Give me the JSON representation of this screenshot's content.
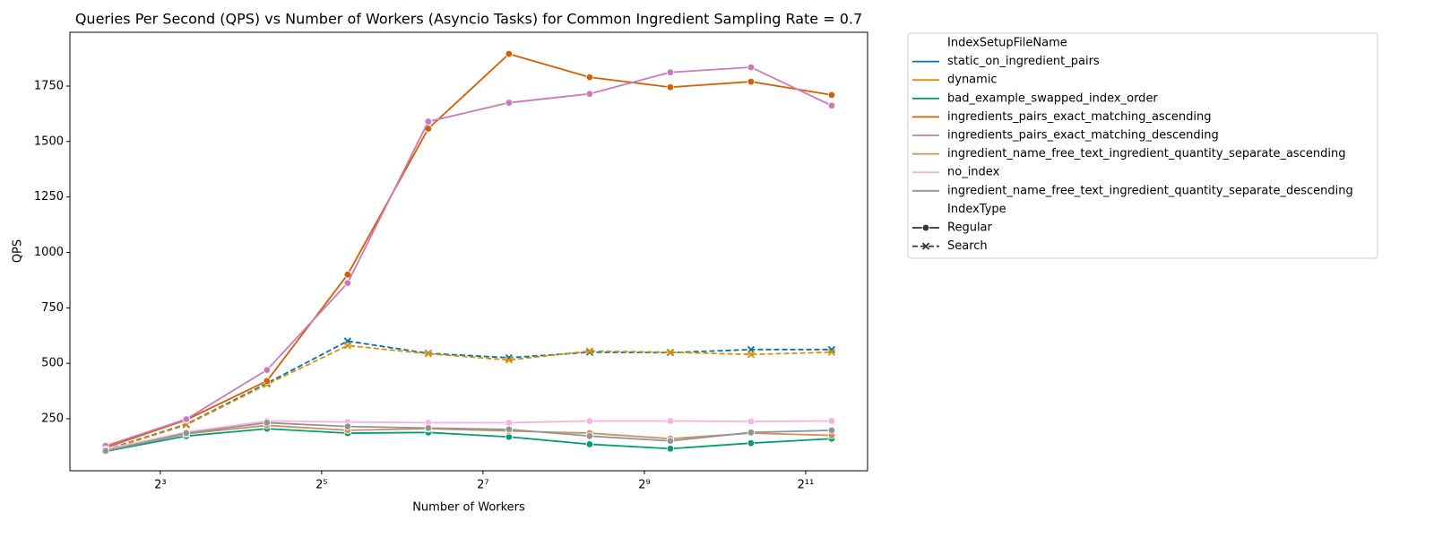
{
  "chart_data": {
    "type": "line",
    "title": "Queries Per Second (QPS) vs Number of Workers (Asyncio Tasks) for Common Ingredient Sampling Rate = 0.7",
    "x_label": "Number of Workers",
    "y_label": "QPS",
    "x": [
      5,
      10,
      20,
      40,
      80,
      160,
      320,
      640,
      1280,
      2560
    ],
    "xlog": 2,
    "xlim": [
      3.68,
      3485
    ],
    "ylim": [
      15.5,
      1992.6
    ],
    "xticks": [
      {
        "value": 8,
        "label": "2³"
      },
      {
        "value": 32,
        "label": "2⁵"
      },
      {
        "value": 128,
        "label": "2⁷"
      },
      {
        "value": 512,
        "label": "2⁹"
      },
      {
        "value": 2048,
        "label": "2¹¹"
      }
    ],
    "yticks": [
      250,
      500,
      750,
      1000,
      1250,
      1500,
      1750
    ],
    "grid": false,
    "legend_position": "outside-right",
    "hue_title": "IndexSetupFileName",
    "style_title": "IndexType",
    "styles": [
      {
        "name": "Regular",
        "dash": "solid",
        "marker": "circle"
      },
      {
        "name": "Search",
        "dash": "dashed",
        "marker": "x"
      }
    ],
    "series": [
      {
        "name": "static_on_ingredient_pairs",
        "color": "#0173b2",
        "style": 1,
        "values": [
          110,
          225,
          410,
          600,
          545,
          525,
          550,
          548,
          562,
          562
        ]
      },
      {
        "name": "dynamic",
        "color": "#de8f05",
        "style": 1,
        "values": [
          108,
          222,
          405,
          580,
          543,
          515,
          555,
          550,
          540,
          550
        ]
      },
      {
        "name": "bad_example_swapped_index_order",
        "color": "#029e73",
        "style": 0,
        "values": [
          103,
          172,
          205,
          185,
          188,
          168,
          135,
          115,
          140,
          160
        ]
      },
      {
        "name": "ingredients_pairs_exact_matching_ascending",
        "color": "#d55e00",
        "style": 0,
        "values": [
          120,
          245,
          420,
          900,
          1558,
          1895,
          1790,
          1745,
          1770,
          1710
        ]
      },
      {
        "name": "ingredients_pairs_exact_matching_descending",
        "color": "#cc78bc",
        "style": 0,
        "values": [
          128,
          248,
          470,
          862,
          1590,
          1675,
          1715,
          1812,
          1835,
          1662
        ]
      },
      {
        "name": "ingredient_name_free_text_ingredient_quantity_separate_ascending",
        "color": "#ca9161",
        "style": 0,
        "values": [
          108,
          182,
          220,
          198,
          205,
          195,
          185,
          160,
          185,
          175
        ]
      },
      {
        "name": "no_index",
        "color": "#fbafe4",
        "style": 0,
        "values": [
          112,
          190,
          240,
          235,
          232,
          232,
          240,
          240,
          238,
          240
        ]
      },
      {
        "name": "ingredient_name_free_text_ingredient_quantity_separate_descending",
        "color": "#949494",
        "style": 0,
        "values": [
          105,
          185,
          232,
          215,
          208,
          202,
          172,
          150,
          188,
          198
        ]
      }
    ]
  }
}
